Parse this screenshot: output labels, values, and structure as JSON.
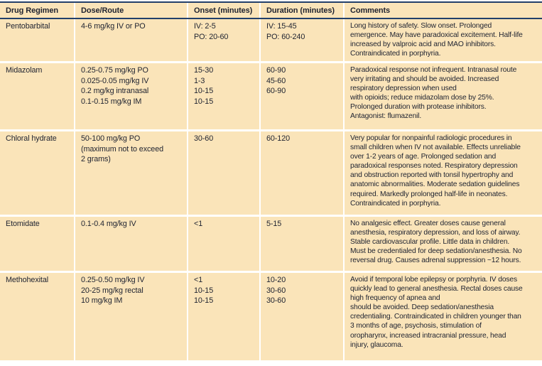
{
  "table": {
    "columns": [
      "Drug Regimen",
      "Dose/Route",
      "Onset (minutes)",
      "Duration (minutes)",
      "Comments"
    ],
    "rows": [
      {
        "drug": "Pentobarbital",
        "dose": "4-6 mg/kg IV or PO",
        "onset": "IV: 2-5\nPO: 20-60",
        "duration": "IV: 15-45\nPO: 60-240",
        "comments": "Long history of safety. Slow onset. Prolonged\nemergence. May have paradoxical excitement. Half-life\nincreased by valproic acid and MAO inhibitors.\nContraindicated in porphyria."
      },
      {
        "drug": "Midazolam",
        "dose": "0.25-0.75 mg/kg PO\n0.025-0.05 mg/kg IV\n0.2 mg/kg intranasal\n0.1-0.15 mg/kg IM",
        "onset": "15-30\n1-3\n10-15\n10-15",
        "duration": "60-90\n45-60\n60-90",
        "comments": "Paradoxical response not infrequent. Intranasal route\nvery irritating and should be avoided. Increased\nrespiratory depression when used\nwith opioids; reduce midazolam dose by 25%.\nProlonged duration with protease inhibitors.\nAntagonist: flumazenil."
      },
      {
        "drug": "Chloral hydrate",
        "dose": "50-100 mg/kg PO\n(maximum not to exceed\n2 grams)",
        "onset": "30-60",
        "duration": "60-120",
        "comments": "Very popular for nonpainful radiologic procedures in\nsmall children when IV not available. Effects unreliable\nover 1-2 years of age. Prolonged sedation and\nparadoxical responses noted. Respiratory depression\nand obstruction reported with tonsil hypertrophy and\nanatomic abnormalities. Moderate sedation guidelines\nrequired. Markedly prolonged half-life in neonates.\nContraindicated in porphyria."
      },
      {
        "drug": "Etomidate",
        "dose": "0.1-0.4 mg/kg IV",
        "onset": "<1",
        "duration": "5-15",
        "comments": "No analgesic effect. Greater doses cause general\nanesthesia, respiratory depression, and loss of airway.\nStable cardiovascular profile. Little data in children.\nMust be credentialed for deep sedation/anesthesia. No\nreversal drug. Causes adrenal suppression ~12 hours."
      },
      {
        "drug": "Methohexital",
        "dose": "0.25-0.50 mg/kg IV\n20-25 mg/kg rectal\n10 mg/kg IM",
        "onset": "<1\n10-15\n10-15",
        "duration": "10-20\n30-60\n30-60",
        "comments": "Avoid if temporal lobe epilepsy or porphyria. IV doses\nquickly lead to general anesthesia. Rectal doses cause\nhigh frequency of apnea and\nshould be avoided. Deep sedation/anesthesia\ncredentialing. Contraindicated in children younger than\n3 months of age, psychosis, stimulation of\noropharynx, increased intracranial pressure, head\ninjury, glaucoma."
      }
    ]
  },
  "colors": {
    "background": "#fae4b9",
    "rule": "#223f6a",
    "separator": "#ffffff",
    "text": "#1e2230"
  }
}
